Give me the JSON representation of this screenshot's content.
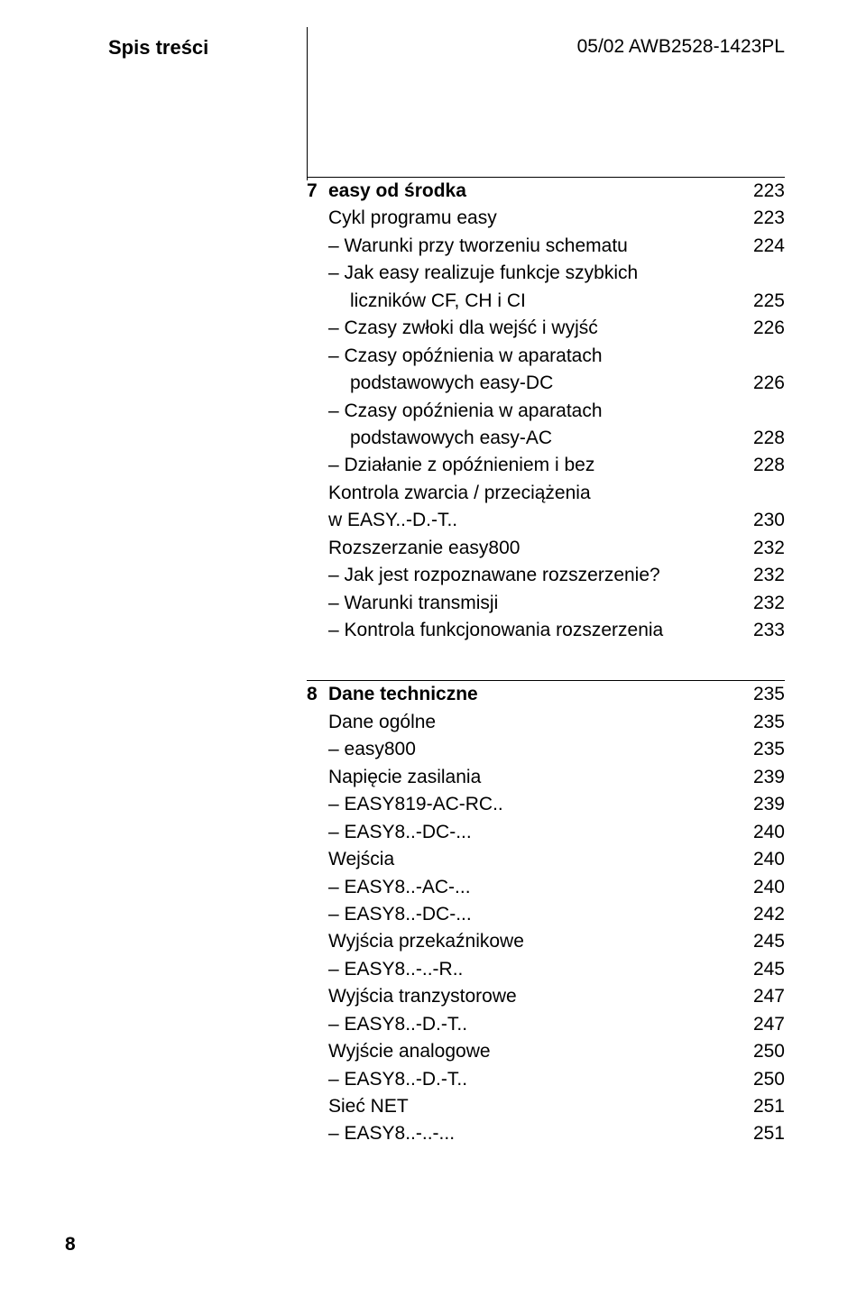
{
  "header": {
    "left": "Spis treści",
    "right": "05/02 AWB2528-1423PL"
  },
  "sections": [
    {
      "num": "7",
      "title": "easy od środka",
      "title_page": "223",
      "rows": [
        {
          "label": "Cykl programu easy",
          "page": "223",
          "indent": 1
        },
        {
          "label": "– Warunki przy tworzeniu schematu",
          "page": "224",
          "indent": 1
        },
        {
          "label": "– Jak easy realizuje funkcje szybkich",
          "page": "",
          "indent": 1
        },
        {
          "label": "liczników CF, CH i CI",
          "page": "225",
          "indent": 2
        },
        {
          "label": "– Czasy zwłoki dla wejść i wyjść",
          "page": "226",
          "indent": 1
        },
        {
          "label": "– Czasy opóźnienia w aparatach",
          "page": "",
          "indent": 1
        },
        {
          "label": "podstawowych easy-DC",
          "page": "226",
          "indent": 2
        },
        {
          "label": "– Czasy opóźnienia w aparatach",
          "page": "",
          "indent": 1
        },
        {
          "label": "podstawowych easy-AC",
          "page": "228",
          "indent": 2
        },
        {
          "label": "– Działanie z opóźnieniem i bez",
          "page": "228",
          "indent": 1
        },
        {
          "label": "Kontrola zwarcia / przeciążenia",
          "page": "",
          "indent": 1
        },
        {
          "label": "w EASY..-D.-T..",
          "page": "230",
          "indent": 1
        },
        {
          "label": "Rozszerzanie easy800",
          "page": "232",
          "indent": 1
        },
        {
          "label": "– Jak jest rozpoznawane rozszerzenie?",
          "page": "232",
          "indent": 1
        },
        {
          "label": "– Warunki transmisji",
          "page": "232",
          "indent": 1
        },
        {
          "label": "– Kontrola funkcjonowania rozszerzenia",
          "page": "233",
          "indent": 1
        }
      ]
    },
    {
      "num": "8",
      "title": "Dane techniczne",
      "title_page": "235",
      "rows": [
        {
          "label": "Dane ogólne",
          "page": "235",
          "indent": 1
        },
        {
          "label": "– easy800",
          "page": "235",
          "indent": 1
        },
        {
          "label": "Napięcie zasilania",
          "page": "239",
          "indent": 1
        },
        {
          "label": "– EASY819-AC-RC..",
          "page": "239",
          "indent": 1
        },
        {
          "label": "– EASY8..-DC-...",
          "page": "240",
          "indent": 1
        },
        {
          "label": "Wejścia",
          "page": "240",
          "indent": 1
        },
        {
          "label": "– EASY8..-AC-...",
          "page": "240",
          "indent": 1
        },
        {
          "label": "– EASY8..-DC-...",
          "page": "242",
          "indent": 1
        },
        {
          "label": "Wyjścia przekaźnikowe",
          "page": "245",
          "indent": 1
        },
        {
          "label": "– EASY8..-..-R..",
          "page": "245",
          "indent": 1
        },
        {
          "label": "Wyjścia tranzystorowe",
          "page": "247",
          "indent": 1
        },
        {
          "label": "– EASY8..-D.-T..",
          "page": "247",
          "indent": 1
        },
        {
          "label": "Wyjście analogowe",
          "page": "250",
          "indent": 1
        },
        {
          "label": "– EASY8..-D.-T..",
          "page": "250",
          "indent": 1
        },
        {
          "label": "Sieć NET",
          "page": "251",
          "indent": 1
        },
        {
          "label": "– EASY8..-..-...",
          "page": "251",
          "indent": 1
        }
      ]
    }
  ],
  "page_number": "8"
}
